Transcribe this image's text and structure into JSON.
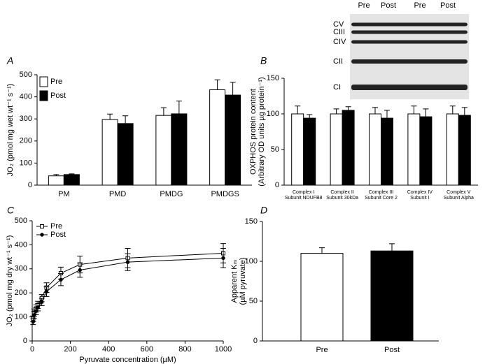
{
  "chart_data": [
    {
      "type": "bar",
      "label": "A",
      "ylabel": "JO₂ (pmol mg wet wt⁻¹ s⁻¹)",
      "categories": [
        "PM",
        "PMD",
        "PMDG",
        "PMDGS"
      ],
      "series": [
        {
          "name": "Pre",
          "color": "#ffffff",
          "values": [
            42,
            297,
            316,
            432
          ],
          "errors": [
            6,
            25,
            35,
            45
          ]
        },
        {
          "name": "Post",
          "color": "#000000",
          "values": [
            48,
            279,
            323,
            408
          ],
          "errors": [
            3,
            35,
            58,
            58
          ]
        }
      ],
      "ylim": [
        0,
        500
      ],
      "yticks": [
        0,
        100,
        200,
        300,
        400,
        500
      ],
      "legend": true
    },
    {
      "type": "bar",
      "label": "B",
      "ylabel": [
        "OXPHOS protein content",
        "(Arbitrary OD units µg protein⁻¹)"
      ],
      "categories": [
        [
          "Complex I",
          "Subunit NDUFB8"
        ],
        [
          "Complex II",
          "Subunit 30kDa"
        ],
        [
          "Complex III",
          "Subunit Core 2"
        ],
        [
          "Complex IV",
          "Subunit I"
        ],
        [
          "Complex V",
          "Subunit Alpha"
        ]
      ],
      "series": [
        {
          "name": "Pre",
          "color": "#ffffff",
          "values": [
            100,
            100,
            100,
            100,
            100
          ],
          "errors": [
            11,
            7,
            9,
            11,
            11
          ]
        },
        {
          "name": "Post",
          "color": "#000000",
          "values": [
            94,
            105,
            94,
            96,
            98
          ],
          "errors": [
            5,
            5,
            11,
            11,
            11
          ]
        }
      ],
      "ylim": [
        0,
        150
      ],
      "yticks": [
        0,
        50,
        100,
        150
      ],
      "legend": false,
      "blot": {
        "columns": [
          "Pre",
          "Post",
          "Pre",
          "Post"
        ],
        "bands": [
          "CV",
          "CIII",
          "CIV",
          "CII",
          "CI"
        ]
      }
    },
    {
      "type": "line",
      "label": "C",
      "ylabel": "JO₂ (pmol mg dry wt⁻¹ s⁻¹)",
      "xlabel": "Pyruvate concentration (µM)",
      "x": [
        5,
        10,
        20,
        30,
        50,
        75,
        150,
        250,
        500,
        1000
      ],
      "series": [
        {
          "name": "Pre",
          "color": "#000000",
          "marker": "square",
          "values": [
            92,
            118,
            135,
            150,
            178,
            222,
            282,
            318,
            345,
            365
          ],
          "errors": [
            12,
            15,
            15,
            15,
            15,
            20,
            25,
            35,
            40,
            40
          ]
        },
        {
          "name": "Post",
          "color": "#000000",
          "marker": "circle",
          "values": [
            80,
            108,
            124,
            140,
            162,
            205,
            255,
            295,
            328,
            345
          ],
          "errors": [
            12,
            15,
            15,
            15,
            15,
            20,
            25,
            30,
            35,
            40
          ]
        }
      ],
      "xlim": [
        0,
        1000
      ],
      "xticks": [
        0,
        200,
        400,
        600,
        800,
        1000
      ],
      "ylim": [
        0,
        500
      ],
      "yticks": [
        0,
        100,
        200,
        300,
        400,
        500
      ]
    },
    {
      "type": "bar",
      "label": "D",
      "ylabel": [
        "Apparent Kₘ",
        "(µM pyruvate)"
      ],
      "categories": [
        "Pre",
        "Post"
      ],
      "values": [
        110,
        113
      ],
      "errors": [
        7,
        9
      ],
      "colors": [
        "#ffffff",
        "#000000"
      ],
      "ylim": [
        0,
        150
      ],
      "yticks": [
        0,
        50,
        100,
        150
      ]
    }
  ]
}
